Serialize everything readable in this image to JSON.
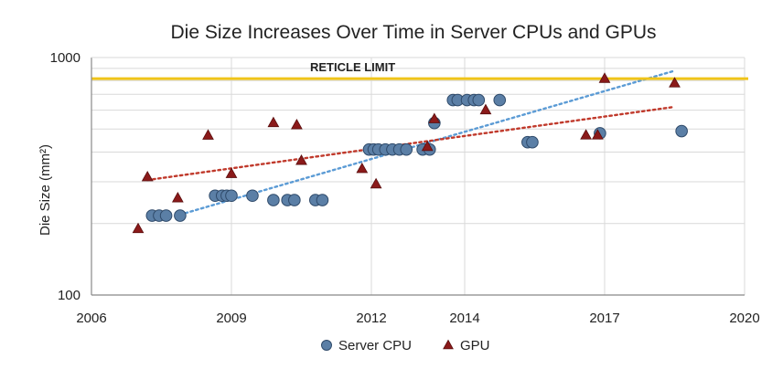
{
  "chart_data": {
    "type": "scatter",
    "title": "Die Size Increases Over Time in Server CPUs and GPUs",
    "xlabel": "",
    "ylabel": "Die Size (mm²)",
    "xlim": [
      2006,
      2020
    ],
    "ylim": [
      100,
      1000
    ],
    "yscale": "log",
    "x_ticks": [
      2006,
      2009,
      2012,
      2014,
      2017,
      2020
    ],
    "y_ticks": [
      100,
      1000
    ],
    "grid": true,
    "legend": "bottom",
    "colors": {
      "server_cpu": "#5b7fa6",
      "server_cpu_edge": "#2f4a6a",
      "gpu": "#8b1a1a",
      "gpu_edge": "#5a0e0e",
      "cpu_trend": "#5b9bd5",
      "gpu_trend": "#c0392b",
      "reticle": "#f0c419",
      "grid": "#d9d9d9"
    },
    "reticle": {
      "label": "RETICLE LIMIT",
      "value": 815
    },
    "series": [
      {
        "name": "Server CPU",
        "marker": "circle",
        "points": [
          [
            2007.3,
            216
          ],
          [
            2007.45,
            216
          ],
          [
            2007.6,
            216
          ],
          [
            2007.9,
            216
          ],
          [
            2008.65,
            262
          ],
          [
            2008.8,
            262
          ],
          [
            2008.9,
            262
          ],
          [
            2009.0,
            262
          ],
          [
            2009.45,
            262
          ],
          [
            2009.9,
            251
          ],
          [
            2010.2,
            251
          ],
          [
            2010.35,
            251
          ],
          [
            2010.8,
            251
          ],
          [
            2010.95,
            251
          ],
          [
            2011.95,
            410
          ],
          [
            2012.05,
            410
          ],
          [
            2012.15,
            410
          ],
          [
            2012.3,
            410
          ],
          [
            2012.45,
            410
          ],
          [
            2012.6,
            410
          ],
          [
            2012.75,
            410
          ],
          [
            2013.1,
            410
          ],
          [
            2013.25,
            410
          ],
          [
            2013.35,
            530
          ],
          [
            2013.75,
            662
          ],
          [
            2013.85,
            662
          ],
          [
            2014.05,
            662
          ],
          [
            2014.2,
            662
          ],
          [
            2014.3,
            662
          ],
          [
            2014.75,
            662
          ],
          [
            2015.35,
            440
          ],
          [
            2015.45,
            440
          ],
          [
            2016.9,
            480
          ],
          [
            2018.65,
            490
          ]
        ]
      },
      {
        "name": "GPU",
        "marker": "triangle",
        "points": [
          [
            2007.0,
            190
          ],
          [
            2007.2,
            314
          ],
          [
            2007.85,
            256
          ],
          [
            2008.5,
            470
          ],
          [
            2009.0,
            324
          ],
          [
            2009.9,
            531
          ],
          [
            2010.4,
            520
          ],
          [
            2010.5,
            368
          ],
          [
            2011.8,
            340
          ],
          [
            2012.1,
            293
          ],
          [
            2013.2,
            421
          ],
          [
            2013.35,
            551
          ],
          [
            2014.45,
            601
          ],
          [
            2016.6,
            471
          ],
          [
            2016.85,
            471
          ],
          [
            2017.0,
            815
          ],
          [
            2018.5,
            780
          ]
        ]
      }
    ],
    "trendlines": [
      {
        "name": "Server CPU trend",
        "style": "dotted",
        "x": [
          2007.9,
          2018.5
        ],
        "y": [
          218,
          880
        ]
      },
      {
        "name": "GPU trend",
        "style": "dotted",
        "x": [
          2007.2,
          2018.5
        ],
        "y": [
          305,
          620
        ]
      }
    ]
  }
}
